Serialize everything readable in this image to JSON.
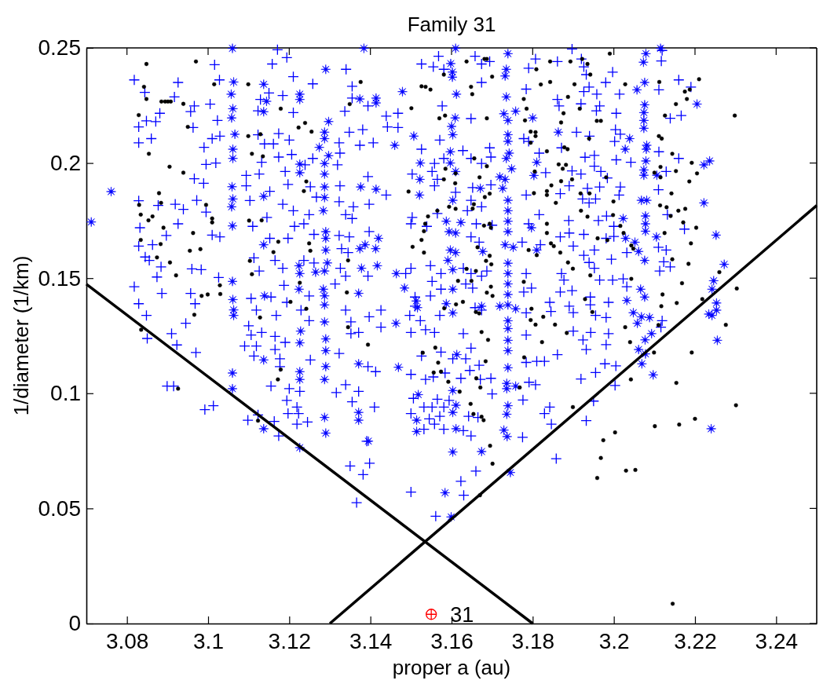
{
  "chart_data": {
    "type": "scatter",
    "title": "Family 31",
    "xlabel": "proper a (au)",
    "ylabel": "1/diameter (1/km)",
    "xlim": [
      3.07,
      3.25
    ],
    "ylim": [
      0,
      0.25
    ],
    "xticks": [
      3.08,
      3.1,
      3.12,
      3.14,
      3.16,
      3.18,
      3.2,
      3.22,
      3.24
    ],
    "yticks": [
      0,
      0.05,
      0.1,
      0.15,
      0.2,
      0.25
    ],
    "annotations": [
      {
        "text": "31",
        "x": 3.155,
        "y": 0.004
      }
    ],
    "series": [
      {
        "marker": "cross",
        "color": "#0000ff",
        "x": [
          3.0818,
          3.0926,
          3.0844,
          3.0917,
          3.1005,
          3.1028,
          3.1016,
          3.0966,
          3.0957,
          3.0881,
          3.0829,
          3.0848,
          3.0871,
          3.0829,
          3.086,
          3.0963,
          3.1023,
          3.101,
          3.1029,
          3.099,
          3.0995,
          3.1019,
          3.0966,
          3.0989,
          3.0972,
          3.0829,
          3.0877,
          3.0919,
          3.0939,
          3.0995,
          3.0926,
          3.0832,
          3.0897,
          3.101,
          3.1029,
          3.0829,
          3.0863,
          3.0845,
          3.0855,
          3.0884,
          3.0874,
          3.096,
          3.0983,
          3.1026,
          3.0818,
          3.0886,
          3.0957,
          3.0968,
          3.0829,
          3.0848,
          3.0945,
          3.091,
          3.1094,
          3.1094,
          3.1126,
          3.1103,
          3.1152,
          3.1184,
          3.121,
          3.1145,
          3.111,
          3.1152,
          3.1197,
          3.1213,
          3.1113,
          3.1165,
          3.1184,
          3.1126,
          3.1187,
          3.1106,
          3.1155,
          3.1194,
          3.1119,
          3.1168,
          3.11,
          3.1132,
          3.1171,
          3.1194,
          3.1158,
          3.121,
          3.115,
          3.1129,
          3.1123,
          3.1184,
          3.121,
          3.1174,
          3.1123,
          3.1139,
          3.1161,
          3.12,
          3.1206,
          3.1174,
          3.1132,
          3.119,
          3.1197,
          3.1568,
          3.1526,
          3.1555,
          3.1581,
          3.1658,
          3.1674,
          3.1694,
          3.1807,
          3.179,
          3.1861,
          3.134,
          3.1258,
          3.1355,
          3.1355,
          3.1337,
          3.1394,
          3.1439,
          3.1442,
          3.1468,
          3.1468,
          3.1577,
          3.1648,
          3.1674,
          3.1784,
          3.1861,
          3.1865,
          3.1348,
          3.1381,
          3.1374,
          3.1407,
          3.1323,
          3.1325,
          3.1319,
          3.1258,
          3.1239,
          3.1526,
          3.1571,
          3.1581,
          3.1628,
          3.1648,
          3.1694,
          3.1674,
          3.1697,
          3.1778,
          3.179,
          3.1816,
          3.1832,
          3.1871,
          3.1558,
          3.1552,
          3.1503,
          3.1394,
          3.1325,
          3.1252,
          3.1267,
          3.1323,
          3.1358,
          3.1397,
          3.1339,
          3.1355,
          3.1249,
          3.1236,
          3.1439,
          3.161,
          3.1648,
          3.1674,
          3.1652,
          3.1697,
          3.1558,
          3.1565,
          3.1503,
          3.15,
          3.1539,
          3.1565,
          3.1639,
          3.1661,
          3.17,
          3.1668,
          3.1648,
          3.1784,
          3.1816,
          3.179,
          3.1868,
          3.1868,
          3.1819,
          3.1774,
          3.1261,
          3.1323,
          3.1348,
          3.1329,
          3.1345,
          3.1397,
          3.1236,
          3.1261,
          3.1326,
          3.1339,
          3.1313,
          3.1394,
          3.15,
          3.1487,
          3.1548,
          3.1574,
          3.1552,
          3.1574,
          3.1548,
          3.151,
          3.1497,
          3.1523,
          3.1571,
          3.1536,
          3.1629,
          3.1648,
          3.1674,
          3.1635,
          3.1652,
          3.1687,
          3.1674,
          3.1658,
          3.1629,
          3.1784,
          3.1797,
          3.1778,
          3.1842,
          3.1845,
          3.1868,
          3.1784,
          3.1229,
          3.1249,
          3.1249,
          3.1339,
          3.1352,
          3.1397,
          3.1426,
          3.1426,
          3.1352,
          3.1371,
          3.151,
          3.1897,
          3.192,
          3.1926,
          3.1932,
          3.1997,
          3.198,
          3.1939,
          3.1926,
          3.1958,
          3.2014,
          3.2117,
          3.2119,
          3.2111,
          3.216,
          3.219,
          3.1919,
          3.1965,
          3.1957,
          3.2006,
          3.2139,
          3.2166,
          3.2004,
          3.1908,
          3.194,
          3.2016,
          3.2002,
          3.1929,
          3.1952,
          3.2006,
          3.2042,
          3.2111,
          3.216,
          3.1952,
          3.1897,
          3.1919,
          3.1968,
          3.1984,
          3.2129,
          3.189,
          3.1935,
          3.1965,
          3.2016,
          3.2013,
          3.211,
          3.1923,
          3.1955,
          3.1939,
          3.2132,
          3.1982,
          3.1962,
          3.1889,
          3.2,
          3.189,
          3.1926,
          3.1981,
          3.2,
          3.2174,
          3.19,
          3.1952,
          3.1926,
          3.2032,
          3.211,
          3.2129,
          3.2123,
          3.2139,
          3.2113,
          3.1952,
          3.1994,
          3.1939,
          3.1871,
          3.1877,
          3.1965,
          3.1997,
          3.2023,
          3.2032,
          3.1897,
          3.1942,
          3.1987,
          3.189,
          3.1942,
          3.19,
          3.1955,
          3.1981,
          3.2119,
          3.2116,
          3.085,
          3.0923,
          3.097,
          3.0899,
          3.0915,
          3.0992,
          3.1013,
          3.1098,
          3.1123,
          3.1163,
          3.1174,
          3.109,
          3.1119,
          3.1113,
          3.1165,
          3.1177,
          3.1177,
          3.1155,
          3.12,
          3.1194,
          3.1197,
          3.1219,
          3.1223,
          3.1219,
          3.1226,
          3.1106,
          3.1165,
          3.119,
          3.15,
          3.1366,
          3.135,
          3.1382,
          3.1398,
          3.1561,
          3.1623,
          3.163,
          3.166,
          3.1858,
          3.1842,
          3.1829,
          3.1846,
          3.1775,
          3.1791,
          3.1807,
          3.1776,
          3.17,
          3.1697,
          3.1671,
          3.1648,
          3.1642,
          3.1665,
          3.1629,
          3.1581,
          3.1558,
          3.1571,
          3.1545,
          3.1532,
          3.15,
          3.1532,
          3.1552,
          3.1581,
          3.1594,
          3.1565,
          3.1506,
          3.1536,
          3.1555,
          3.1584,
          3.1623,
          3.1645,
          3.1668,
          3.1635,
          3.1603,
          3.1574,
          3.1526,
          3.15,
          3.141,
          3.1391,
          3.1413,
          3.1394,
          3.1371,
          3.1355,
          3.1339,
          3.1316,
          3.1252,
          3.1245,
          3.1323,
          3.1784,
          3.181,
          3.1829,
          3.1861,
          3.1784,
          3.1648,
          3.1558,
          3.15,
          3.19,
          3.1943,
          3.1987,
          3.1924,
          3.1981,
          3.1932,
          3.1978,
          3.2005,
          3.1955,
          3.1919,
          3.2003,
          3.195,
          3.1932
        ],
        "values": [
          0.2361,
          0.235,
          0.2307,
          0.2287,
          0.2256,
          0.2361,
          0.2427,
          0.2248,
          0.2223,
          0.2216,
          0.2157,
          0.2183,
          0.218,
          0.2088,
          0.2106,
          0.2154,
          0.2185,
          0.2106,
          0.2117,
          0.2068,
          0.1994,
          0.2,
          0.1932,
          0.1912,
          0.1838,
          0.1836,
          0.1816,
          0.1821,
          0.1799,
          0.1787,
          0.1736,
          0.1719,
          0.1685,
          0.1687,
          0.1679,
          0.1639,
          0.1645,
          0.1592,
          0.1577,
          0.1549,
          0.1505,
          0.154,
          0.1537,
          0.1503,
          0.1463,
          0.1434,
          0.1434,
          0.1389,
          0.1389,
          0.1338,
          0.1304,
          0.1259,
          0.1946,
          0.1901,
          0.1952,
          0.1837,
          0.1877,
          0.1821,
          0.1793,
          0.1764,
          0.1725,
          0.1673,
          0.1673,
          0.1725,
          0.1588,
          0.1577,
          0.1543,
          0.1531,
          0.1469,
          0.1412,
          0.1418,
          0.1395,
          0.1361,
          0.1338,
          0.1293,
          0.1264,
          0.2492,
          0.2458,
          0.243,
          0.2375,
          0.2304,
          0.2276,
          0.2227,
          0.2293,
          0.2219,
          0.2128,
          0.2123,
          0.2083,
          0.2083,
          0.21,
          0.2037,
          0.2026,
          0.2003,
          0.1963,
          0.1907,
          0.2464,
          0.243,
          0.2418,
          0.2407,
          0.2464,
          0.243,
          0.2441,
          0.2452,
          0.2412,
          0.2441,
          0.2407,
          0.2344,
          0.2333,
          0.2282,
          0.2225,
          0.2248,
          0.2204,
          0.2157,
          0.2216,
          0.2154,
          0.2248,
          0.2193,
          0.235,
          0.2321,
          0.2276,
          0.2248,
          0.2134,
          0.2145,
          0.2077,
          0.2088,
          0.2088,
          0.2043,
          0.1992,
          0.202,
          0.1992,
          0.206,
          0.21,
          0.202,
          0.2054,
          0.202,
          0.2066,
          0.1998,
          0.2026,
          0.2106,
          0.2094,
          0.2043,
          0.1958,
          0.2066,
          0.1998,
          0.1963,
          0.1952,
          0.1941,
          0.1901,
          0.1897,
          0.1852,
          0.1832,
          0.181,
          0.1821,
          0.1776,
          0.1759,
          0.1776,
          0.1736,
          0.1861,
          0.1873,
          0.1838,
          0.181,
          0.1893,
          0.1905,
          0.1901,
          0.1929,
          0.1764,
          0.1736,
          0.1725,
          0.1781,
          0.1793,
          0.1736,
          0.173,
          0.1656,
          0.1679,
          0.1861,
          0.1776,
          0.1736,
          0.1867,
          0.1679,
          0.1645,
          0.1656,
          0.169,
          0.1685,
          0.1679,
          0.1628,
          0.1611,
          0.1702,
          0.1577,
          0.1566,
          0.1543,
          0.1509,
          0.1475,
          0.1509,
          0.1543,
          0.152,
          0.1554,
          0.152,
          0.1486,
          0.1452,
          0.1423,
          0.1378,
          0.1338,
          0.1315,
          0.1338,
          0.1276,
          0.1543,
          0.152,
          0.1509,
          0.1475,
          0.1457,
          0.1531,
          0.1361,
          0.1372,
          0.1259,
          0.152,
          0.1457,
          0.144,
          0.1395,
          0.1355,
          0.144,
          0.1349,
          0.1361,
          0.1423,
          0.1315,
          0.1361,
          0.131,
          0.1332,
          0.1361,
          0.1287,
          0.1259,
          0.1264,
          0.1418,
          0.2495,
          0.2452,
          0.2418,
          0.2384,
          0.2395,
          0.235,
          0.233,
          0.231,
          0.2299,
          0.2299,
          0.2443,
          0.2489,
          0.2318,
          0.2361,
          0.233,
          0.2257,
          0.2248,
          0.2227,
          0.2216,
          0.2194,
          0.2206,
          0.2145,
          0.2134,
          0.2117,
          0.2125,
          0.2094,
          0.2025,
          0.2033,
          0.2014,
          0.2003,
          0.2049,
          0.202,
          0.1986,
          0.1966,
          0.1952,
          0.1963,
          0.1935,
          0.1963,
          0.1901,
          0.189,
          0.1896,
          0.1896,
          0.1861,
          0.1884,
          0.1844,
          0.1844,
          0.1827,
          0.1776,
          0.177,
          0.175,
          0.175,
          0.1725,
          0.1696,
          0.169,
          0.1673,
          0.1681,
          0.1713,
          0.1639,
          0.1622,
          0.1599,
          0.1611,
          0.1634,
          0.1622,
          0.1571,
          0.1549,
          0.1531,
          0.1543,
          0.1582,
          0.1568,
          0.152,
          0.1492,
          0.1492,
          0.1492,
          0.1497,
          0.1463,
          0.1446,
          0.1418,
          0.1395,
          0.1378,
          0.1384,
          0.135,
          0.1338,
          0.1329,
          0.1315,
          0.1287,
          0.1238,
          0.121,
          0.1177,
          0.1031,
          0.1031,
          0.0929,
          0.0946,
          0.0883,
          0.0906,
          0.0878,
          0.0815,
          0.1205,
          0.1205,
          0.1162,
          0.119,
          0.115,
          0.1116,
          0.1031,
          0.102,
          0.0969,
          0.0912,
          0.094,
          0.0912,
          0.0866,
          0.1008,
          0.1253,
          0.1247,
          0.1221,
          0.0571,
          0.0525,
          0.0684,
          0.0647,
          0.0696,
          0.0466,
          0.0618,
          0.0557,
          0.0662,
          0.0716,
          0.094,
          0.0912,
          0.0866,
          0.0809,
          0.1048,
          0.1037,
          0.0971,
          0.0997,
          0.1065,
          0.106,
          0.0815,
          0.09,
          0.0895,
          0.0838,
          0.0844,
          0.0866,
          0.09,
          0.0889,
          0.0844,
          0.0912,
          0.094,
          0.094,
          0.094,
          0.0969,
          0.0974,
          0.0978,
          0.106,
          0.1071,
          0.1088,
          0.1065,
          0.1099,
          0.1122,
          0.115,
          0.115,
          0.1179,
          0.1162,
          0.1082,
          0.094,
          0.0792,
          0.1094,
          0.1116,
          0.1008,
          0.0963,
          0.1037,
          0.1003,
          0.1145,
          0.0875,
          0.1173,
          0.1134,
          0.1139,
          0.1139,
          0.1168,
          0.1253,
          0.1196,
          0.1264,
          0.1264,
          0.127,
          0.1264,
          0.1259,
          0.1232,
          0.1211,
          0.119,
          0.1128,
          0.1119,
          0.109,
          0.1062,
          0.1034,
          0.0966,
          0.0881
        ]
      },
      {
        "marker": "star",
        "color": "#0000ff",
        "x": [
          3.106,
          3.1063,
          3.1057,
          3.1061,
          3.1058,
          3.1066,
          3.1061,
          3.1061,
          3.1059,
          3.1061,
          3.1058,
          3.106,
          3.106,
          3.1061,
          3.1063,
          3.1063,
          3.0761,
          3.0712,
          3.1137,
          3.1137,
          3.1144,
          3.1137,
          3.1137,
          3.1139,
          3.1226,
          3.1226,
          3.1226,
          3.1224,
          3.1226,
          3.1224,
          3.1228,
          3.1384,
          3.161,
          3.1739,
          3.129,
          3.1598,
          3.1602,
          3.1602,
          3.1735,
          3.1732,
          3.1374,
          3.1414,
          3.1414,
          3.1479,
          3.1612,
          3.1735,
          3.1609,
          3.16,
          3.1603,
          3.1297,
          3.1287,
          3.1287,
          3.1274,
          3.1297,
          3.1287,
          3.1287,
          3.1287,
          3.1287,
          3.1284,
          3.1507,
          3.146,
          3.1523,
          3.1522,
          3.1521,
          3.1376,
          3.1414,
          3.1226,
          3.1729,
          3.1739,
          3.1758,
          3.18,
          3.1739,
          3.1739,
          3.1742,
          3.1735,
          3.1748,
          3.1732,
          3.1719,
          3.1597,
          3.1597,
          3.161,
          3.1863,
          3.1803,
          3.181,
          3.1671,
          3.1726,
          3.1739,
          3.1739,
          3.1739,
          3.1739,
          3.1603,
          3.1587,
          3.1623,
          3.1594,
          3.161,
          3.1677,
          3.1732,
          3.1752,
          3.1797,
          3.181,
          3.161,
          3.1597,
          3.1591,
          3.1603,
          3.1739,
          3.1739,
          3.1739,
          3.1739,
          3.1739,
          3.1719,
          3.1758,
          3.1739,
          3.1739,
          3.129,
          3.129,
          3.129,
          3.1294,
          3.1287,
          3.1284,
          3.1287,
          3.1287,
          3.1287,
          3.1265,
          3.1374,
          3.1387,
          3.142,
          3.1413,
          3.1378,
          3.1417,
          3.1371,
          3.1464,
          3.1484,
          3.1513,
          3.1516,
          3.1463,
          3.1603,
          3.1587,
          3.1603,
          3.1674,
          3.2115,
          3.2079,
          3.2073,
          3.2076,
          3.2057,
          3.2205,
          3.2076,
          3.2074,
          3.2074,
          3.2074,
          3.2081,
          3.208,
          3.2039,
          3.2028,
          3.2079,
          3.2074,
          3.2074,
          3.2106,
          3.2236,
          3.2222,
          3.2068,
          3.2081,
          3.2078,
          3.2078,
          3.2078,
          3.2222,
          3.2023,
          3.2029,
          3.2052,
          3.2061,
          3.2105,
          3.2252,
          3.2076,
          3.2272,
          3.2246,
          3.2242,
          3.2066,
          3.2076,
          3.2032,
          3.2253,
          3.2253,
          3.2234,
          3.2242,
          3.2048,
          3.2068,
          3.2088,
          3.2058,
          3.2093,
          3.106,
          3.106,
          3.1137,
          3.1226,
          3.1137,
          3.1226,
          3.1226,
          3.1226,
          3.1599,
          3.1584,
          3.1603,
          3.1674,
          3.1745,
          3.1514,
          3.1514,
          3.1518,
          3.1611,
          3.1603,
          3.1611,
          3.1603,
          3.1613,
          3.1729,
          3.1737,
          3.1736,
          3.1739,
          3.1736,
          3.1736,
          3.1758,
          3.1739,
          3.1739,
          3.1739,
          3.129,
          3.1287,
          3.1371,
          3.1371,
          3.1395,
          3.1469,
          3.1371,
          3.1287,
          3.129,
          3.129,
          3.129,
          3.2077,
          3.2061,
          3.2078,
          3.2069,
          3.2097,
          3.2255,
          3.224
        ],
        "values": [
          0.2498,
          0.2352,
          0.2299,
          0.2236,
          0.2196,
          0.2125,
          0.206,
          0.202,
          0.1897,
          0.1844,
          0.181,
          0.1727,
          0.1486,
          0.1407,
          0.1362,
          0.1338,
          0.1876,
          0.1744,
          0.2342,
          0.2223,
          0.2268,
          0.1855,
          0.1645,
          0.1423,
          0.2299,
          0.2276,
          0.1995,
          0.1554,
          0.152,
          0.1452,
          0.127,
          0.2498,
          0.2498,
          0.2475,
          0.2407,
          0.2432,
          0.2395,
          0.2373,
          0.2407,
          0.2378,
          0.2278,
          0.2282,
          0.2261,
          0.231,
          0.2299,
          0.2287,
          0.2196,
          0.2159,
          0.2123,
          0.218,
          0.2134,
          0.2106,
          0.2068,
          0.2032,
          0.1998,
          0.1952,
          0.1896,
          0.185,
          0.1793,
          0.2117,
          0.2077,
          0.2,
          0.1929,
          0.1861,
          0.1896,
          0.1886,
          0.1958,
          0.2214,
          0.2185,
          0.2225,
          0.2196,
          0.2123,
          0.2094,
          0.2043,
          0.202,
          0.1975,
          0.1929,
          0.194,
          0.2049,
          0.2,
          0.1963,
          0.2134,
          0.1946,
          0.2003,
          0.189,
          0.189,
          0.1838,
          0.1793,
          0.1747,
          0.1702,
          0.1838,
          0.1747,
          0.1742,
          0.1702,
          0.1696,
          0.1616,
          0.1645,
          0.1634,
          0.1719,
          0.1622,
          0.1611,
          0.1622,
          0.1577,
          0.1537,
          0.1565,
          0.152,
          0.1475,
          0.1429,
          0.1384,
          0.1378,
          0.1367,
          0.1315,
          0.1281,
          0.1702,
          0.1673,
          0.1622,
          0.1566,
          0.1531,
          0.1452,
          0.1423,
          0.1384,
          0.131,
          0.1526,
          0.1628,
          0.1645,
          0.1673,
          0.1628,
          0.1543,
          0.1554,
          0.1434,
          0.152,
          0.1457,
          0.1401,
          0.1372,
          0.1304,
          0.1452,
          0.1389,
          0.1349,
          0.1378,
          0.2498,
          0.2475,
          0.2438,
          0.235,
          0.2318,
          0.2256,
          0.2253,
          0.2219,
          0.2185,
          0.2151,
          0.2077,
          0.206,
          0.2106,
          0.206,
          0.2009,
          0.197,
          0.1947,
          0.1947,
          0.2009,
          0.1992,
          0.1838,
          0.1838,
          0.177,
          0.1736,
          0.1704,
          0.1827,
          0.1759,
          0.1673,
          0.1656,
          0.1616,
          0.1679,
          0.1687,
          0.1577,
          0.156,
          0.1489,
          0.1452,
          0.1452,
          0.1418,
          0.1403,
          0.1392,
          0.1361,
          0.1344,
          0.1338,
          0.135,
          0.1332,
          0.1329,
          0.1304,
          0.1259,
          0.1088,
          0.102,
          0.0846,
          0.0764,
          0.1145,
          0.1094,
          0.106,
          0.1219,
          0.0463,
          0.0568,
          0.0745,
          0.0747,
          0.0656,
          0.0834,
          0.0883,
          0.0994,
          0.0846,
          0.0917,
          0.0948,
          0.1012,
          0.1168,
          0.084,
          0.0812,
          0.0909,
          0.0946,
          0.102,
          0.1043,
          0.1031,
          0.1111,
          0.1185,
          0.123,
          0.0827,
          0.0895,
          0.0917,
          0.0883,
          0.0792,
          0.1113,
          0.1128,
          0.106,
          0.1116,
          0.1185,
          0.1236,
          0.1232,
          0.119,
          0.1171,
          0.1128,
          0.108,
          0.123,
          0.0846
        ]
      },
      {
        "marker": "circle",
        "color": "#000000",
        "x": [
          3.0848,
          3.097,
          3.0842,
          3.0848,
          3.0885,
          3.0894,
          3.0901,
          3.0908,
          3.0939,
          3.0829,
          3.095,
          3.1015,
          3.1099,
          3.0854,
          3.0905,
          3.0939,
          3.0879,
          3.083,
          3.0884,
          3.0834,
          3.0863,
          3.0853,
          3.0995,
          3.101,
          3.101,
          3.089,
          3.0963,
          3.0834,
          3.0883,
          3.0955,
          3.0981,
          3.0874,
          3.0906,
          3.0921,
          3.0984,
          3.0999,
          3.103,
          3.1029,
          3.0966,
          3.1179,
          3.1099,
          3.1129,
          3.1108,
          3.1135,
          3.1108,
          3.1103,
          3.1101,
          3.1132,
          3.1173,
          3.1161,
          3.1128,
          3.1203,
          3.1223,
          3.1637,
          3.1681,
          3.1687,
          3.1581,
          3.17,
          3.1809,
          3.1843,
          3.1843,
          3.182,
          3.1376,
          3.1526,
          3.1536,
          3.1548,
          3.1648,
          3.1651,
          3.1778,
          3.1349,
          3.1501,
          3.157,
          3.1584,
          3.1687,
          3.1785,
          3.1781,
          3.1876,
          3.187,
          3.1795,
          3.1807,
          3.1807,
          3.1795,
          3.1239,
          3.1255,
          3.1835,
          3.1878,
          3.1864,
          3.187,
          3.1846,
          3.1835,
          3.1835,
          3.1857,
          3.1803,
          3.1805,
          3.1656,
          3.1687,
          3.161,
          3.1581,
          3.1609,
          3.1585,
          3.1669,
          3.1694,
          3.1682,
          3.161,
          3.1594,
          3.1565,
          3.1652,
          3.1655,
          3.1542,
          3.1535,
          3.1532,
          3.1526,
          3.1532,
          3.1504,
          3.1494,
          3.1236,
          3.1242,
          3.168,
          3.1694,
          3.1697,
          3.1664,
          3.1694,
          3.1685,
          3.1698,
          3.1637,
          3.166,
          3.1616,
          3.1649,
          3.1697,
          3.1687,
          3.1701,
          3.1628,
          3.1611,
          3.1582,
          3.166,
          3.1668,
          3.1674,
          3.1778,
          3.1797,
          3.1795,
          3.1807,
          3.1826,
          3.1855,
          3.1835,
          3.1835,
          3.1845,
          3.1852,
          3.179,
          3.181,
          3.1868,
          3.1249,
          3.1252,
          3.1342,
          3.1345,
          3.1345,
          3.1242,
          3.1226,
          3.199,
          3.1893,
          3.1922,
          3.1935,
          3.1942,
          3.1903,
          3.2028,
          3.2112,
          3.221,
          3.2175,
          3.218,
          3.2187,
          3.1887,
          3.2153,
          3.1916,
          3.2126,
          3.2298,
          3.1958,
          3.1968,
          3.2111,
          3.2118,
          3.1939,
          3.1886,
          3.2144,
          3.2192,
          3.1882,
          3.1874,
          3.2153,
          3.2205,
          3.2115,
          3.21,
          3.2115,
          3.1981,
          3.2186,
          3.1897,
          3.2142,
          3.1918,
          3.194,
          3.1999,
          3.2114,
          3.213,
          3.2159,
          3.2176,
          3.1919,
          3.1935,
          3.1998,
          3.214,
          3.2171,
          3.2203,
          3.2016,
          3.2024,
          3.196,
          3.1984,
          3.2125,
          3.219,
          3.2043,
          3.2048,
          3.1887,
          3.1899,
          3.2144,
          3.2184,
          3.226,
          3.1942,
          3.2043,
          3.2168,
          3.2218,
          3.212,
          3.2303,
          3.2117,
          3.2155,
          3.1929,
          3.1947,
          3.2276,
          3.211,
          3.2028,
          3.1884,
          3.0835,
          3.0926,
          3.1123,
          3.1179,
          3.1172,
          3.1394,
          3.1695,
          3.1701,
          3.167,
          3.1647,
          3.1654,
          3.1674,
          3.1679,
          3.162,
          3.1592,
          3.1671,
          3.1661,
          3.1684,
          3.1574,
          3.1556,
          3.1567,
          3.1529,
          3.156,
          3.1768,
          3.1779,
          3.1823,
          3.169,
          3.204,
          3.2099,
          3.2192,
          3.2042,
          3.2154,
          3.1899,
          3.2301,
          3.22,
          3.2101,
          3.2161,
          3.2003,
          3.1974,
          3.1968,
          3.203,
          3.2053,
          3.1959,
          3.2145
        ],
        "values": [
          0.243,
          0.2441,
          0.2331,
          0.2278,
          0.2267,
          0.2267,
          0.2267,
          0.2267,
          0.2257,
          0.2208,
          0.2157,
          0.2342,
          0.2342,
          0.204,
          0.1984,
          0.1958,
          0.1869,
          0.1818,
          0.1827,
          0.1776,
          0.1768,
          0.1751,
          0.1818,
          0.1759,
          0.1742,
          0.1719,
          0.1696,
          0.1666,
          0.1648,
          0.1619,
          0.1626,
          0.159,
          0.1568,
          0.1512,
          0.1423,
          0.1429,
          0.1431,
          0.1469,
          0.1341,
          0.2236,
          0.2117,
          0.2125,
          0.204,
          0.2029,
          0.1517,
          0.1575,
          0.175,
          0.1751,
          0.1658,
          0.1613,
          0.1329,
          0.1397,
          0.2154,
          0.2441,
          0.2452,
          0.2452,
          0.2384,
          0.2375,
          0.2407,
          0.2441,
          0.2352,
          0.2341,
          0.2352,
          0.2333,
          0.2331,
          0.2319,
          0.2331,
          0.2299,
          0.2278,
          0.2256,
          0.2238,
          0.2194,
          0.2206,
          0.2194,
          0.2236,
          0.2185,
          0.2216,
          0.2176,
          0.2136,
          0.2134,
          0.2117,
          0.2088,
          0.2174,
          0.2136,
          0.2051,
          0.2068,
          0.1994,
          0.1921,
          0.1903,
          0.1878,
          0.1861,
          0.1827,
          0.1869,
          0.1963,
          0.202,
          0.1986,
          0.1955,
          0.1929,
          0.1912,
          0.1975,
          0.1938,
          0.1867,
          0.1852,
          0.1801,
          0.181,
          0.1793,
          0.1802,
          0.1821,
          0.1768,
          0.1736,
          0.1704,
          0.1666,
          0.1611,
          0.1636,
          0.1876,
          0.1878,
          0.192,
          0.1728,
          0.1736,
          0.1719,
          0.1634,
          0.1597,
          0.1575,
          0.156,
          0.154,
          0.1531,
          0.1488,
          0.1488,
          0.1463,
          0.1437,
          0.1423,
          0.1397,
          0.1386,
          0.1369,
          0.1353,
          0.1347,
          0.1266,
          0.1484,
          0.1367,
          0.1318,
          0.1298,
          0.1332,
          0.1298,
          0.1736,
          0.1696,
          0.1651,
          0.1639,
          0.1622,
          0.16,
          0.1611,
          0.1651,
          0.1619,
          0.1438,
          0.1287,
          0.1577,
          0.1367,
          0.148,
          0.2475,
          0.2441,
          0.2452,
          0.243,
          0.2384,
          0.2342,
          0.2342,
          0.2352,
          0.2364,
          0.231,
          0.2278,
          0.2319,
          0.2287,
          0.2256,
          0.2236,
          0.2206,
          0.2206,
          0.2183,
          0.2183,
          0.2117,
          0.2106,
          0.2106,
          0.206,
          0.204,
          0.2001,
          0.1992,
          0.1975,
          0.1965,
          0.1955,
          0.1983,
          0.1958,
          0.1938,
          0.1938,
          0.192,
          0.1929,
          0.1868,
          0.1868,
          0.1868,
          0.1833,
          0.1816,
          0.1808,
          0.1793,
          0.1801,
          0.1793,
          0.1767,
          0.1774,
          0.177,
          0.1742,
          0.1719,
          0.1727,
          0.1696,
          0.1673,
          0.1665,
          0.1696,
          0.1651,
          0.1642,
          0.1628,
          0.1568,
          0.1541,
          0.1582,
          0.1562,
          0.1526,
          0.1512,
          0.1497,
          0.1478,
          0.1409,
          0.1429,
          0.1455,
          0.1378,
          0.1392,
          0.1409,
          0.1353,
          0.1297,
          0.1296,
          0.1287,
          0.1262,
          0.1276,
          0.102,
          0.0881,
          0.1103,
          0.106,
          0.1211,
          0.0772,
          0.0694,
          0.0557,
          0.0954,
          0.091,
          0.0898,
          0.0883,
          0.1007,
          0.105,
          0.1025,
          0.1065,
          0.1139,
          0.1094,
          0.109,
          0.1133,
          0.1176,
          0.1198,
          0.1025,
          0.1156,
          0.1222,
          0.1232,
          0.1222,
          0.1177,
          0.1177,
          0.106,
          0.1045,
          0.094,
          0.0948,
          0.0889,
          0.0857,
          0.0864,
          0.083,
          0.0796,
          0.0719,
          0.0664,
          0.0667,
          0.0632,
          0.0086
        ]
      },
      {
        "type": "line",
        "color": "#000000",
        "x": [
          3.07,
          3.18
        ],
        "values": [
          0.1474,
          0
        ]
      },
      {
        "type": "line",
        "color": "#000000",
        "x": [
          3.13,
          3.25
        ],
        "values": [
          0,
          0.1816
        ]
      },
      {
        "marker": "circle",
        "color": "#ff0000",
        "x": [
          3.155
        ],
        "values": [
          0.004
        ]
      },
      {
        "marker": "cross",
        "color": "#ff0000",
        "x": [
          3.155
        ],
        "values": [
          0.004
        ]
      }
    ]
  }
}
